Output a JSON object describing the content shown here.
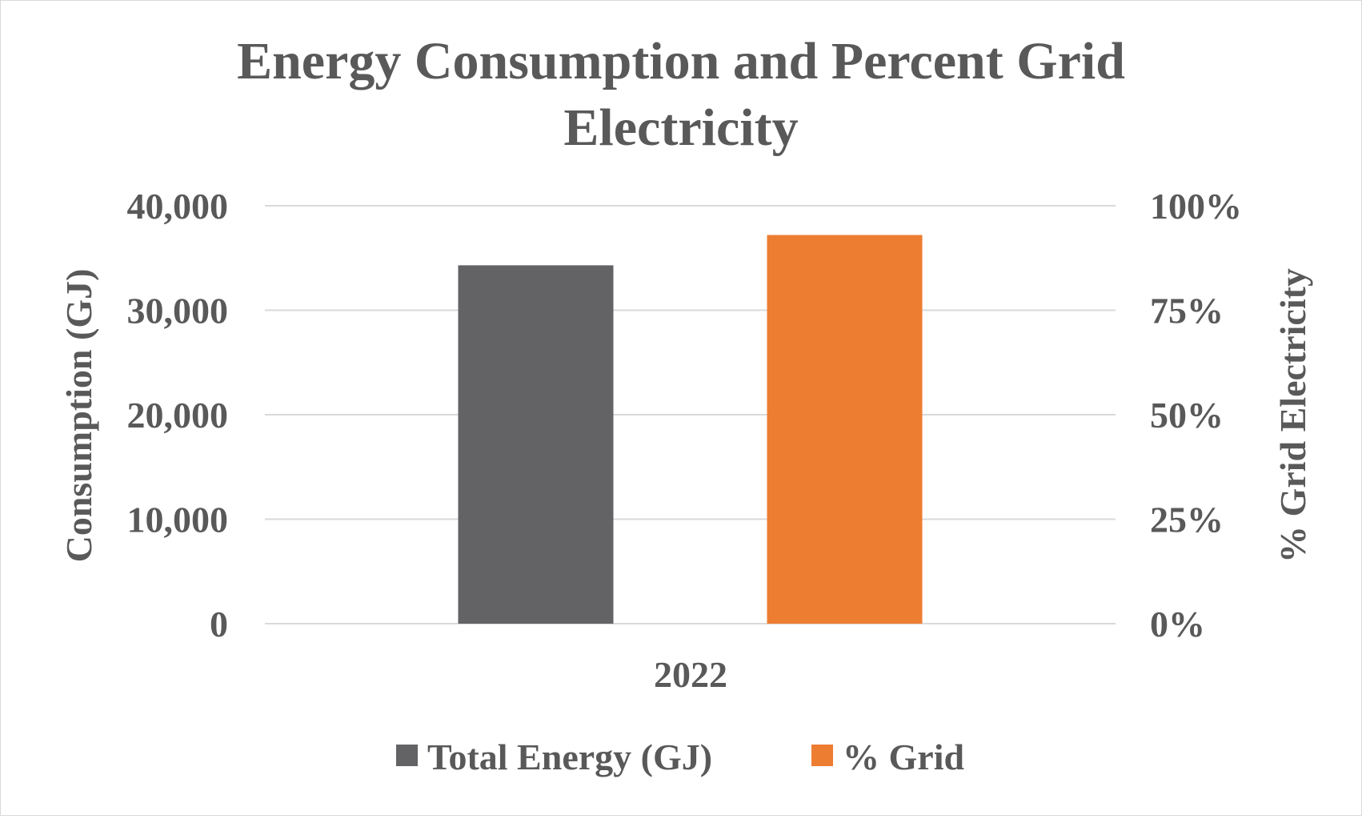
{
  "chart_data": {
    "type": "bar",
    "title_lines": [
      "Energy Consumption and Percent Grid",
      "Electricity"
    ],
    "categories": [
      "2022"
    ],
    "series": [
      {
        "name": "Total Energy (GJ)",
        "axis": "left",
        "values": [
          34300
        ],
        "color": "#636366"
      },
      {
        "name": "% Grid",
        "axis": "right",
        "values": [
          0.93
        ],
        "color": "#ed7d31"
      }
    ],
    "ylabel_left": "Consumption (GJ)",
    "ylabel_right": "% Grid Electricity",
    "ylim_left": [
      0,
      40000
    ],
    "ylim_right": [
      0,
      1
    ],
    "yticks_left": [
      "0",
      "10,000",
      "20,000",
      "30,000",
      "40,000"
    ],
    "yticks_right": [
      "0%",
      "25%",
      "50%",
      "75%",
      "100%"
    ],
    "grid": true,
    "legend_position": "bottom",
    "colors": {
      "text": "#595959",
      "grid": "#d9d9d9",
      "border": "#d9d9d9"
    }
  }
}
